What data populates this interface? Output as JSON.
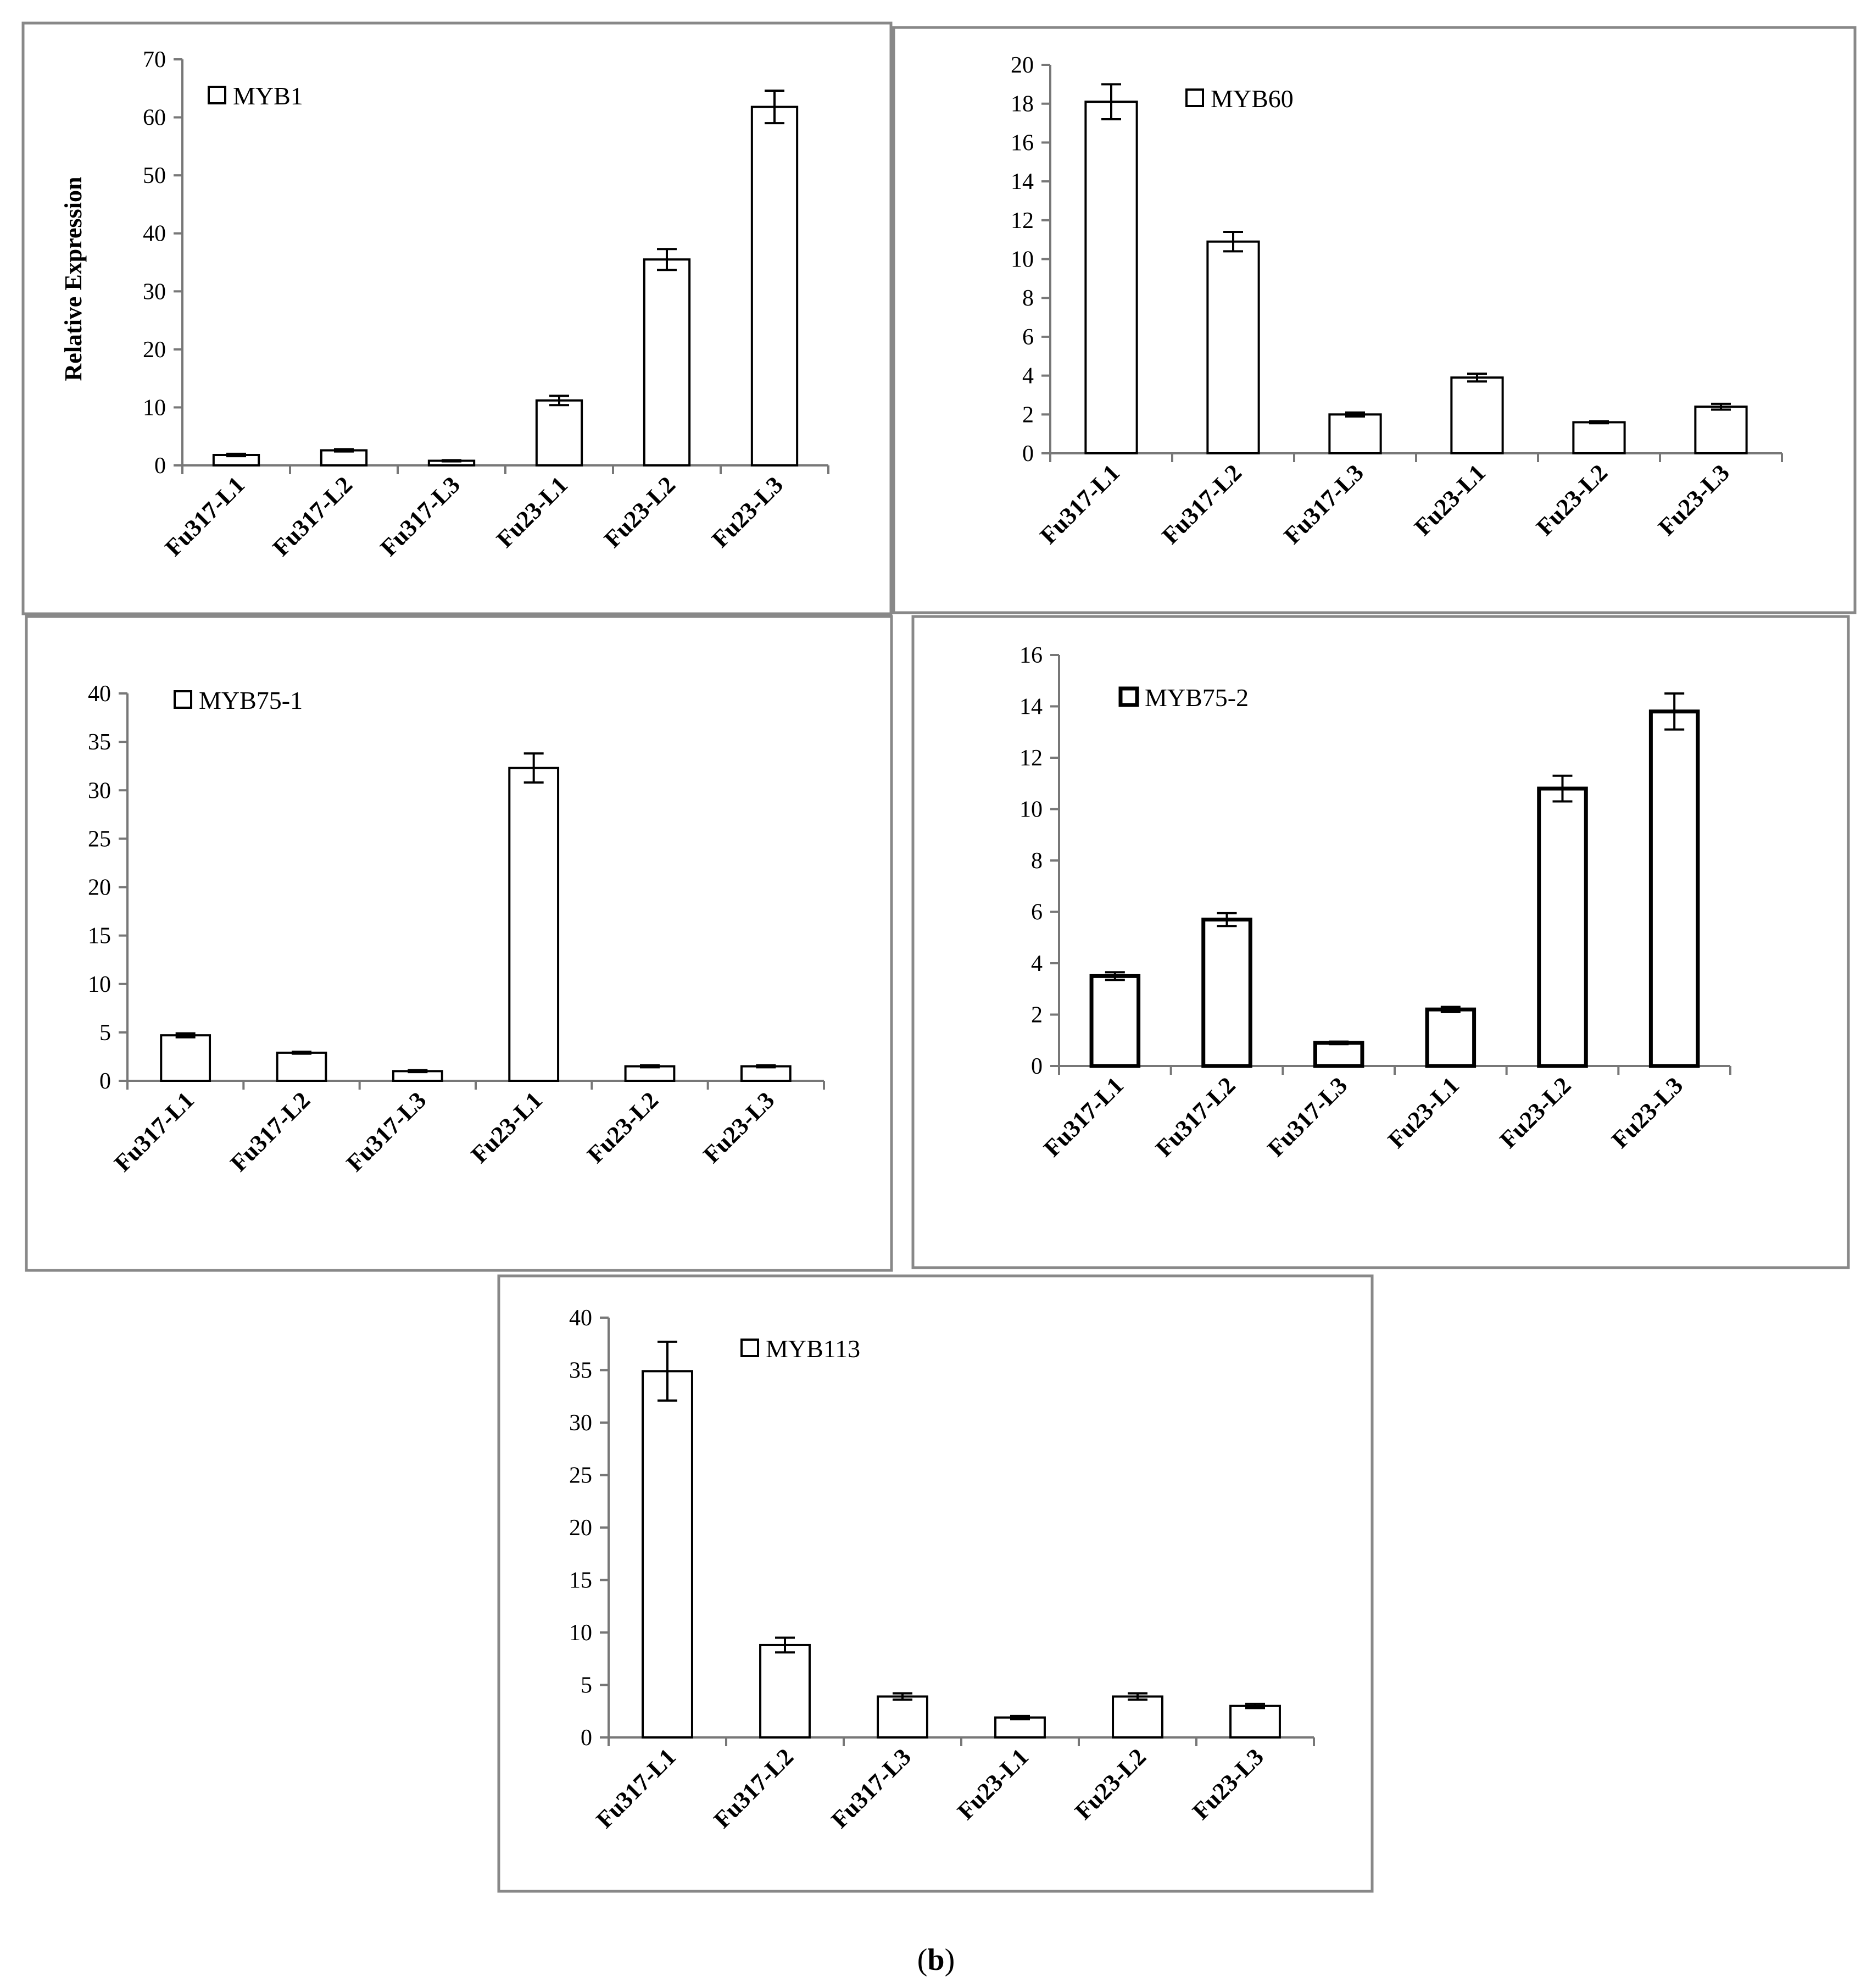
{
  "caption": {
    "open": "(",
    "label": "b",
    "close": ")"
  },
  "chart_data": [
    {
      "type": "bar",
      "title": "",
      "legend": "MYB1",
      "ylabel": "Relative Expression",
      "xlabel": "",
      "categories": [
        "Fu317-L1",
        "Fu317-L2",
        "Fu317-L3",
        "Fu23-L1",
        "Fu23-L2",
        "Fu23-L3"
      ],
      "values": [
        1.8,
        2.6,
        0.8,
        11.2,
        35.5,
        61.8
      ],
      "errors": [
        0.2,
        0.2,
        0.1,
        0.8,
        1.8,
        2.8
      ],
      "ylim": [
        0,
        70
      ],
      "yticks": [
        0,
        10,
        20,
        30,
        40,
        50,
        60,
        70
      ]
    },
    {
      "type": "bar",
      "title": "",
      "legend": "MYB60",
      "ylabel": "",
      "xlabel": "",
      "categories": [
        "Fu317-L1",
        "Fu317-L2",
        "Fu317-L3",
        "Fu23-L1",
        "Fu23-L2",
        "Fu23-L3"
      ],
      "values": [
        18.1,
        10.9,
        2.0,
        3.9,
        1.6,
        2.4
      ],
      "errors": [
        0.9,
        0.5,
        0.1,
        0.2,
        0.05,
        0.15
      ],
      "ylim": [
        0,
        20
      ],
      "yticks": [
        0,
        2,
        4,
        6,
        8,
        10,
        12,
        14,
        16,
        18,
        20
      ]
    },
    {
      "type": "bar",
      "title": "",
      "legend": "MYB75-1",
      "ylabel": "",
      "xlabel": "",
      "categories": [
        "Fu317-L1",
        "Fu317-L2",
        "Fu317-L3",
        "Fu23-L1",
        "Fu23-L2",
        "Fu23-L3"
      ],
      "values": [
        4.7,
        2.9,
        1.0,
        32.3,
        1.5,
        1.5
      ],
      "errors": [
        0.2,
        0.1,
        0.1,
        1.5,
        0.1,
        0.1
      ],
      "ylim": [
        0,
        40
      ],
      "yticks": [
        0,
        5,
        10,
        15,
        20,
        25,
        30,
        35,
        40
      ]
    },
    {
      "type": "bar",
      "title": "",
      "legend": "MYB75-2",
      "ylabel": "",
      "xlabel": "",
      "categories": [
        "Fu317-L1",
        "Fu317-L2",
        "Fu317-L3",
        "Fu23-L1",
        "Fu23-L2",
        "Fu23-L3"
      ],
      "values": [
        3.5,
        5.7,
        0.9,
        2.2,
        10.8,
        13.8
      ],
      "errors": [
        0.15,
        0.25,
        0.05,
        0.1,
        0.5,
        0.7
      ],
      "ylim": [
        0,
        16
      ],
      "yticks": [
        0,
        2,
        4,
        6,
        8,
        10,
        12,
        14,
        16
      ],
      "bold_outline": true
    },
    {
      "type": "bar",
      "title": "",
      "legend": "MYB113",
      "ylabel": "",
      "xlabel": "",
      "categories": [
        "Fu317-L1",
        "Fu317-L2",
        "Fu317-L3",
        "Fu23-L1",
        "Fu23-L2",
        "Fu23-L3"
      ],
      "values": [
        34.9,
        8.8,
        3.9,
        1.9,
        3.9,
        3.0
      ],
      "errors": [
        2.8,
        0.7,
        0.3,
        0.15,
        0.3,
        0.2
      ],
      "ylim": [
        0,
        40
      ],
      "yticks": [
        0,
        5,
        10,
        15,
        20,
        25,
        30,
        35,
        40
      ]
    }
  ]
}
